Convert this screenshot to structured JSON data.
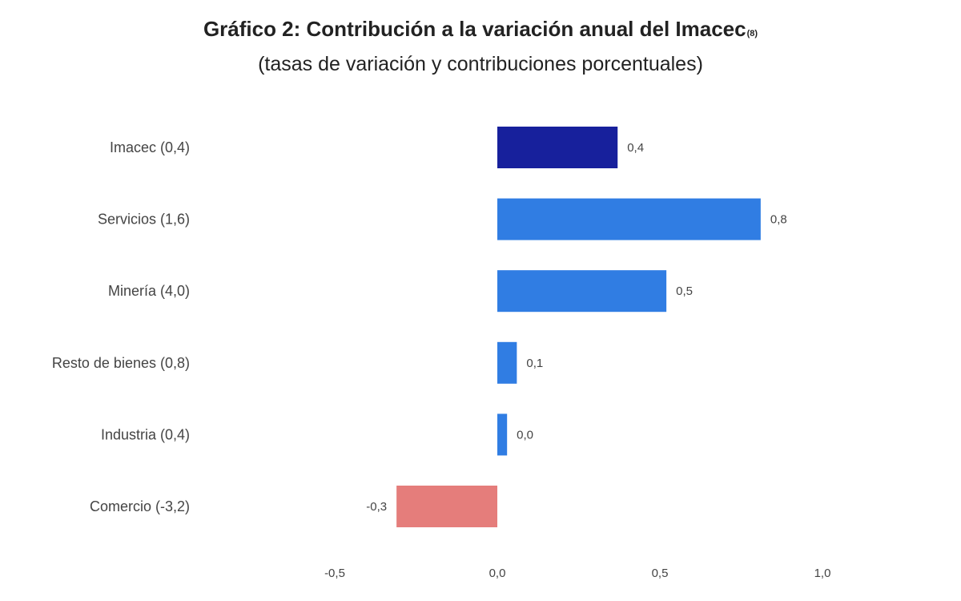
{
  "title": "Gráfico 2: Contribución a la variación anual del Imacec",
  "title_note": "(8)",
  "subtitle": "(tasas de variación y contribuciones porcentuales)",
  "colors": {
    "imacec": "#17209c",
    "positive": "#307de3",
    "negative": "#e57d7b"
  },
  "chart_data": {
    "type": "bar",
    "orientation": "horizontal",
    "title": "Gráfico 2: Contribución a la variación anual del Imacec(8)",
    "subtitle": "(tasas de variación y contribuciones porcentuales)",
    "categories": [
      "Imacec (0,4)",
      "Servicios (1,6)",
      "Minería (4,0)",
      "Resto de bienes (0,8)",
      "Industria (0,4)",
      "Comercio (-3,2)"
    ],
    "values": [
      0.37,
      0.81,
      0.52,
      0.06,
      0.03,
      -0.31
    ],
    "value_labels": [
      "0,4",
      "0,8",
      "0,5",
      "0,1",
      "0,0",
      "-0,3"
    ],
    "bar_colors": [
      "imacec",
      "positive",
      "positive",
      "positive",
      "positive",
      "negative"
    ],
    "xlim": [
      -0.5,
      1.0
    ],
    "xticks": [
      -0.5,
      0.0,
      0.5,
      1.0
    ],
    "xtick_labels": [
      "-0,5",
      "0,0",
      "0,5",
      "1,0"
    ],
    "grid": false,
    "legend": "none"
  }
}
